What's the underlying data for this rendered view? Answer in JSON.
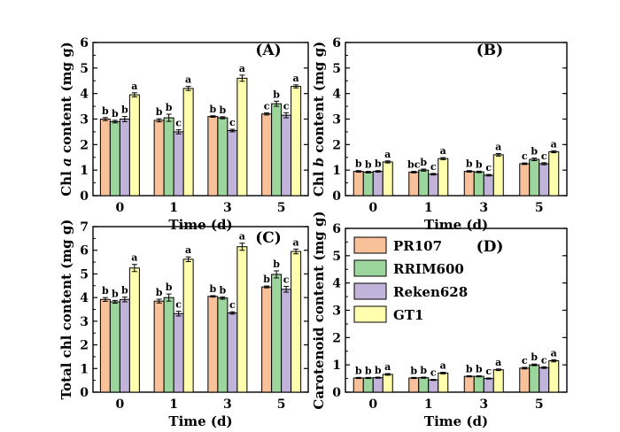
{
  "colors": {
    "PR107": "#f9c199",
    "RRIM600": "#9dd69d",
    "Reken628": "#c1b3d9",
    "GT1": "#ffffad"
  },
  "legend": [
    "PR107",
    "RRIM600",
    "Reken628",
    "GT1"
  ],
  "chart_data": [
    {
      "type": "bar",
      "panel_label": "(A)",
      "xlabel": "Time (d)",
      "ylabel_pre": "Chl ",
      "ylabel_em": "a",
      "ylabel_post": " content (mg g)",
      "categories": [
        "0",
        "1",
        "3",
        "5"
      ],
      "ylim": [
        0,
        6
      ],
      "yticks": [
        "0",
        "1",
        "2",
        "3",
        "4",
        "5",
        "6"
      ],
      "series": [
        {
          "name": "PR107",
          "values": [
            3.0,
            2.95,
            3.1,
            3.2
          ],
          "errors": [
            0.06,
            0.06,
            0.03,
            0.04
          ],
          "letters": [
            "b",
            "b",
            "b",
            "c"
          ]
        },
        {
          "name": "RRIM600",
          "values": [
            2.9,
            3.05,
            3.05,
            3.6
          ],
          "errors": [
            0.05,
            0.14,
            0.04,
            0.1
          ],
          "letters": [
            "b",
            "b",
            "b",
            "b"
          ]
        },
        {
          "name": "Reken628",
          "values": [
            3.0,
            2.5,
            2.55,
            3.15
          ],
          "errors": [
            0.1,
            0.08,
            0.05,
            0.1
          ],
          "letters": [
            "b",
            "c",
            "c",
            "c"
          ]
        },
        {
          "name": "GT1",
          "values": [
            3.95,
            4.2,
            4.6,
            4.28
          ],
          "errors": [
            0.08,
            0.08,
            0.12,
            0.06
          ],
          "letters": [
            "a",
            "a",
            "a",
            "a"
          ]
        }
      ]
    },
    {
      "type": "bar",
      "panel_label": "(B)",
      "xlabel": "Time (d)",
      "ylabel_pre": "Chl ",
      "ylabel_em": "b",
      "ylabel_post": " content (mg g)",
      "categories": [
        "0",
        "1",
        "3",
        "5"
      ],
      "ylim": [
        0,
        6
      ],
      "yticks": [
        "0",
        "1",
        "2",
        "3",
        "4",
        "5",
        "6"
      ],
      "series": [
        {
          "name": "PR107",
          "values": [
            0.95,
            0.92,
            0.95,
            1.25
          ],
          "errors": [
            0.03,
            0.03,
            0.03,
            0.03
          ],
          "letters": [
            "b",
            "bc",
            "b",
            "c"
          ]
        },
        {
          "name": "RRIM600",
          "values": [
            0.92,
            1.0,
            0.93,
            1.42
          ],
          "errors": [
            0.03,
            0.04,
            0.03,
            0.05
          ],
          "letters": [
            "b",
            "b",
            "b",
            "b"
          ]
        },
        {
          "name": "Reken628",
          "values": [
            0.95,
            0.84,
            0.8,
            1.25
          ],
          "errors": [
            0.03,
            0.03,
            0.03,
            0.04
          ],
          "letters": [
            "b",
            "c",
            "c",
            "c"
          ]
        },
        {
          "name": "GT1",
          "values": [
            1.32,
            1.45,
            1.6,
            1.72
          ],
          "errors": [
            0.04,
            0.04,
            0.05,
            0.04
          ],
          "letters": [
            "a",
            "a",
            "a",
            "a"
          ]
        }
      ]
    },
    {
      "type": "bar",
      "panel_label": "(C)",
      "xlabel": "Time (d)",
      "ylabel_pre": "Total chl content (mg g)",
      "ylabel_em": "",
      "ylabel_post": "",
      "categories": [
        "0",
        "1",
        "3",
        "5"
      ],
      "ylim": [
        0,
        7
      ],
      "yticks": [
        "0",
        "1",
        "2",
        "3",
        "4",
        "5",
        "6",
        "7"
      ],
      "series": [
        {
          "name": "PR107",
          "values": [
            3.92,
            3.85,
            4.05,
            4.45
          ],
          "errors": [
            0.08,
            0.08,
            0.03,
            0.04
          ],
          "letters": [
            "b",
            "b",
            "b",
            "b"
          ]
        },
        {
          "name": "RRIM600",
          "values": [
            3.82,
            4.0,
            3.98,
            4.98
          ],
          "errors": [
            0.06,
            0.15,
            0.05,
            0.15
          ],
          "letters": [
            "b",
            "b",
            "b",
            "b"
          ]
        },
        {
          "name": "Reken628",
          "values": [
            3.92,
            3.32,
            3.35,
            4.35
          ],
          "errors": [
            0.1,
            0.1,
            0.05,
            0.12
          ],
          "letters": [
            "b",
            "c",
            "c",
            "c"
          ]
        },
        {
          "name": "GT1",
          "values": [
            5.25,
            5.62,
            6.15,
            5.95
          ],
          "errors": [
            0.15,
            0.1,
            0.15,
            0.1
          ],
          "letters": [
            "a",
            "a",
            "a",
            "a"
          ]
        }
      ]
    },
    {
      "type": "bar",
      "panel_label": "(D)",
      "xlabel": "Time (d)",
      "ylabel_pre": "Carotenoid content (mg g)",
      "ylabel_em": "",
      "ylabel_post": "",
      "categories": [
        "0",
        "1",
        "3",
        "5"
      ],
      "ylim": [
        0,
        6
      ],
      "yticks": [
        "0",
        "1",
        "2",
        "3",
        "4",
        "5",
        "6"
      ],
      "series": [
        {
          "name": "PR107",
          "values": [
            0.52,
            0.52,
            0.58,
            0.88
          ],
          "errors": [
            0.02,
            0.02,
            0.02,
            0.03
          ],
          "letters": [
            "b",
            "b",
            "b",
            "c"
          ]
        },
        {
          "name": "RRIM600",
          "values": [
            0.52,
            0.53,
            0.58,
            1.0
          ],
          "errors": [
            0.02,
            0.02,
            0.02,
            0.03
          ],
          "letters": [
            "b",
            "b",
            "b",
            "b"
          ]
        },
        {
          "name": "Reken628",
          "values": [
            0.53,
            0.45,
            0.5,
            0.9
          ],
          "errors": [
            0.02,
            0.02,
            0.02,
            0.03
          ],
          "letters": [
            "b",
            "c",
            "c",
            "c"
          ]
        },
        {
          "name": "GT1",
          "values": [
            0.65,
            0.7,
            0.82,
            1.15
          ],
          "errors": [
            0.03,
            0.03,
            0.03,
            0.04
          ],
          "letters": [
            "a",
            "a",
            "a",
            "a"
          ]
        }
      ]
    }
  ]
}
